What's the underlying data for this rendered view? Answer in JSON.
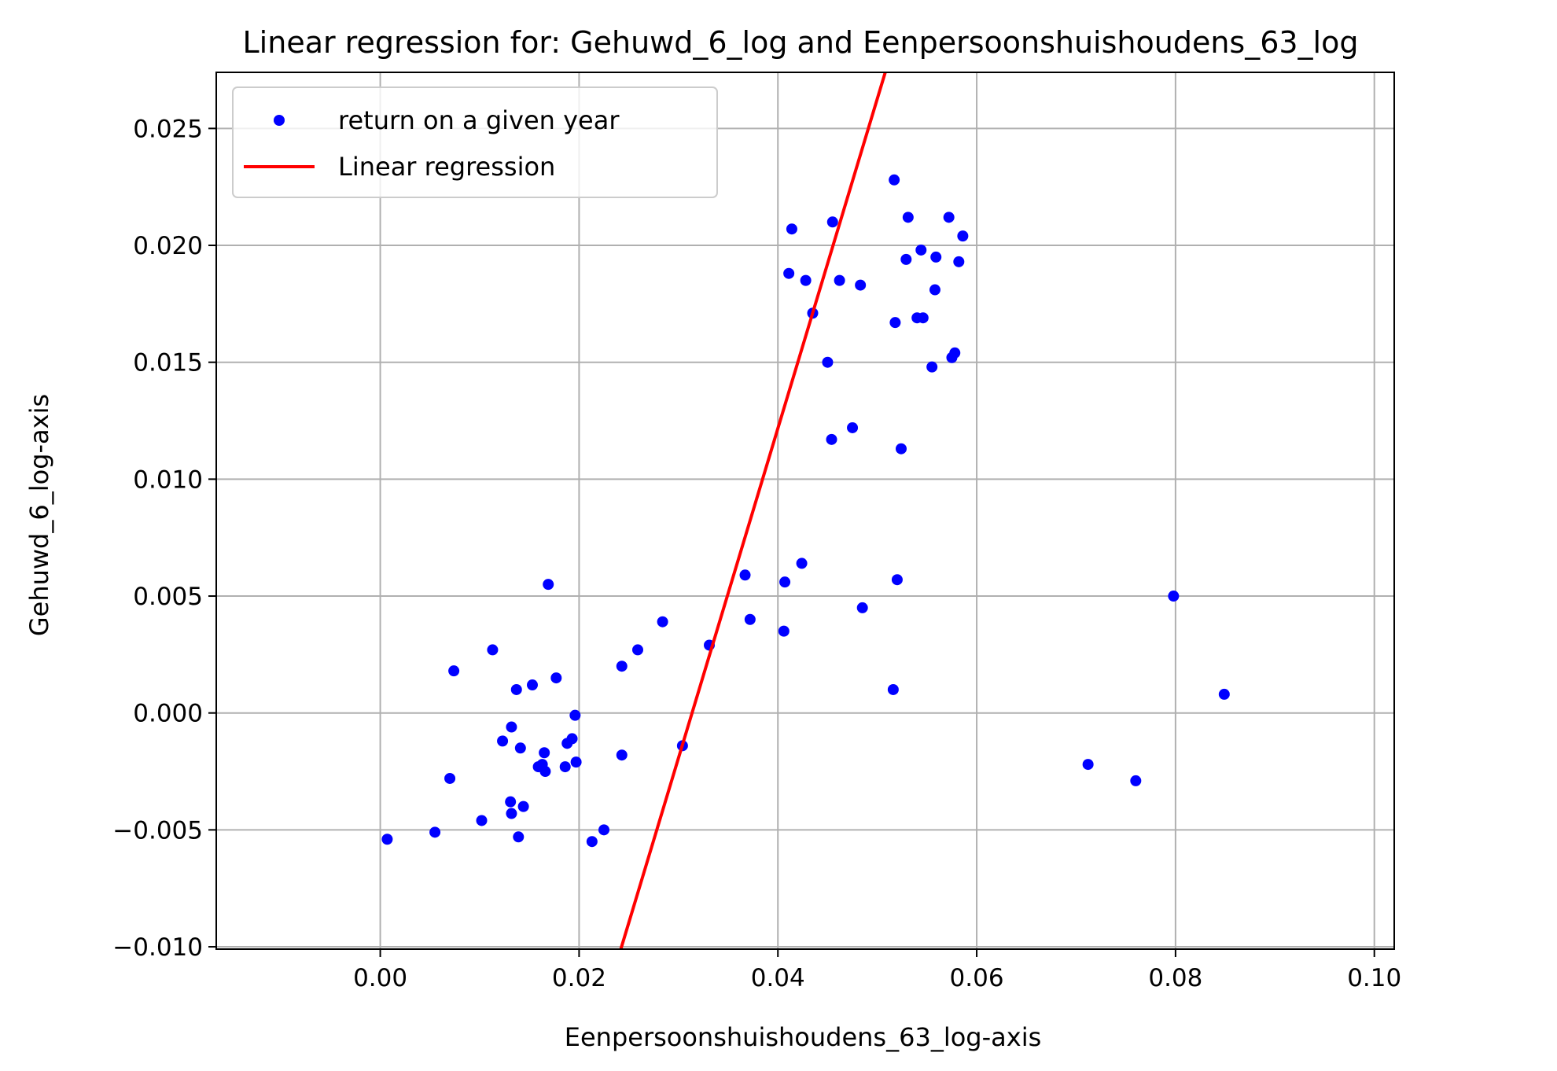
{
  "chart_data": {
    "type": "scatter",
    "title": "Linear regression for: Gehuwd_6_log and Eenpersoonshuishoudens_63_log",
    "xlabel": "Eenpersoonshuishoudens_63_log-axis",
    "ylabel": "Gehuwd_6_log-axis",
    "xlim": [
      -0.0165,
      0.102
    ],
    "ylim": [
      -0.0101,
      0.0274
    ],
    "xticks": [
      0.0,
      0.02,
      0.04,
      0.06,
      0.08,
      0.1
    ],
    "xtick_labels": [
      "0.00",
      "0.02",
      "0.04",
      "0.06",
      "0.08",
      "0.10"
    ],
    "yticks": [
      -0.01,
      -0.005,
      0.0,
      0.005,
      0.01,
      0.015,
      0.02,
      0.025
    ],
    "ytick_labels": [
      "−0.010",
      "−0.005",
      "0.000",
      "0.005",
      "0.010",
      "0.015",
      "0.020",
      "0.025"
    ],
    "grid": true,
    "legend": {
      "position": "top-left",
      "entries": [
        "return on a given year",
        "Linear regression"
      ]
    },
    "colors": {
      "points": "#0000ff",
      "line": "#ff0000",
      "grid": "#b0b0b0"
    },
    "series": [
      {
        "name": "return on a given year",
        "type": "scatter",
        "points": [
          [
            0.0007,
            -0.0054
          ],
          [
            0.0055,
            -0.0051
          ],
          [
            0.007,
            -0.0028
          ],
          [
            0.0074,
            0.0018
          ],
          [
            0.0102,
            -0.0046
          ],
          [
            0.0113,
            0.0027
          ],
          [
            0.0123,
            -0.0012
          ],
          [
            0.0131,
            -0.0038
          ],
          [
            0.0132,
            -0.0006
          ],
          [
            0.0132,
            -0.0043
          ],
          [
            0.0137,
            0.001
          ],
          [
            0.0139,
            -0.0053
          ],
          [
            0.0141,
            -0.0015
          ],
          [
            0.0144,
            -0.004
          ],
          [
            0.0153,
            0.0012
          ],
          [
            0.0159,
            -0.0023
          ],
          [
            0.0163,
            -0.0022
          ],
          [
            0.0165,
            -0.0017
          ],
          [
            0.0166,
            -0.0025
          ],
          [
            0.0169,
            0.0055
          ],
          [
            0.0177,
            0.0015
          ],
          [
            0.0186,
            -0.0023
          ],
          [
            0.0188,
            -0.0013
          ],
          [
            0.0193,
            -0.0011
          ],
          [
            0.0196,
            -0.0001
          ],
          [
            0.0197,
            -0.0021
          ],
          [
            0.0213,
            -0.0055
          ],
          [
            0.0225,
            -0.005
          ],
          [
            0.0243,
            0.002
          ],
          [
            0.0243,
            -0.0018
          ],
          [
            0.0259,
            0.0027
          ],
          [
            0.0284,
            0.0039
          ],
          [
            0.0304,
            -0.0014
          ],
          [
            0.0331,
            0.0029
          ],
          [
            0.0367,
            0.0059
          ],
          [
            0.0372,
            0.004
          ],
          [
            0.0406,
            0.0035
          ],
          [
            0.0407,
            0.0056
          ],
          [
            0.0424,
            0.0064
          ],
          [
            0.0485,
            0.0045
          ],
          [
            0.0516,
            0.001
          ],
          [
            0.052,
            0.0057
          ],
          [
            0.0524,
            0.0113
          ],
          [
            0.0411,
            0.0188
          ],
          [
            0.0414,
            0.0207
          ],
          [
            0.0428,
            0.0185
          ],
          [
            0.0435,
            0.0171
          ],
          [
            0.045,
            0.015
          ],
          [
            0.0454,
            0.0117
          ],
          [
            0.0455,
            0.021
          ],
          [
            0.0462,
            0.0185
          ],
          [
            0.0475,
            0.0122
          ],
          [
            0.0483,
            0.0183
          ],
          [
            0.0517,
            0.0228
          ],
          [
            0.0518,
            0.0167
          ],
          [
            0.0529,
            0.0194
          ],
          [
            0.0531,
            0.0212
          ],
          [
            0.054,
            0.0169
          ],
          [
            0.0544,
            0.0198
          ],
          [
            0.0546,
            0.0169
          ],
          [
            0.0555,
            0.0148
          ],
          [
            0.0558,
            0.0181
          ],
          [
            0.0559,
            0.0195
          ],
          [
            0.0572,
            0.0212
          ],
          [
            0.0575,
            0.0152
          ],
          [
            0.0578,
            0.0154
          ],
          [
            0.0582,
            0.0193
          ],
          [
            0.0586,
            0.0204
          ],
          [
            0.0712,
            -0.0022
          ],
          [
            0.076,
            -0.0029
          ],
          [
            0.0798,
            0.005
          ],
          [
            0.0849,
            0.0008
          ]
        ]
      },
      {
        "name": "Linear regression",
        "type": "line",
        "points": [
          [
            0.0242,
            -0.0101
          ],
          [
            0.0508,
            0.0274
          ]
        ]
      }
    ]
  }
}
